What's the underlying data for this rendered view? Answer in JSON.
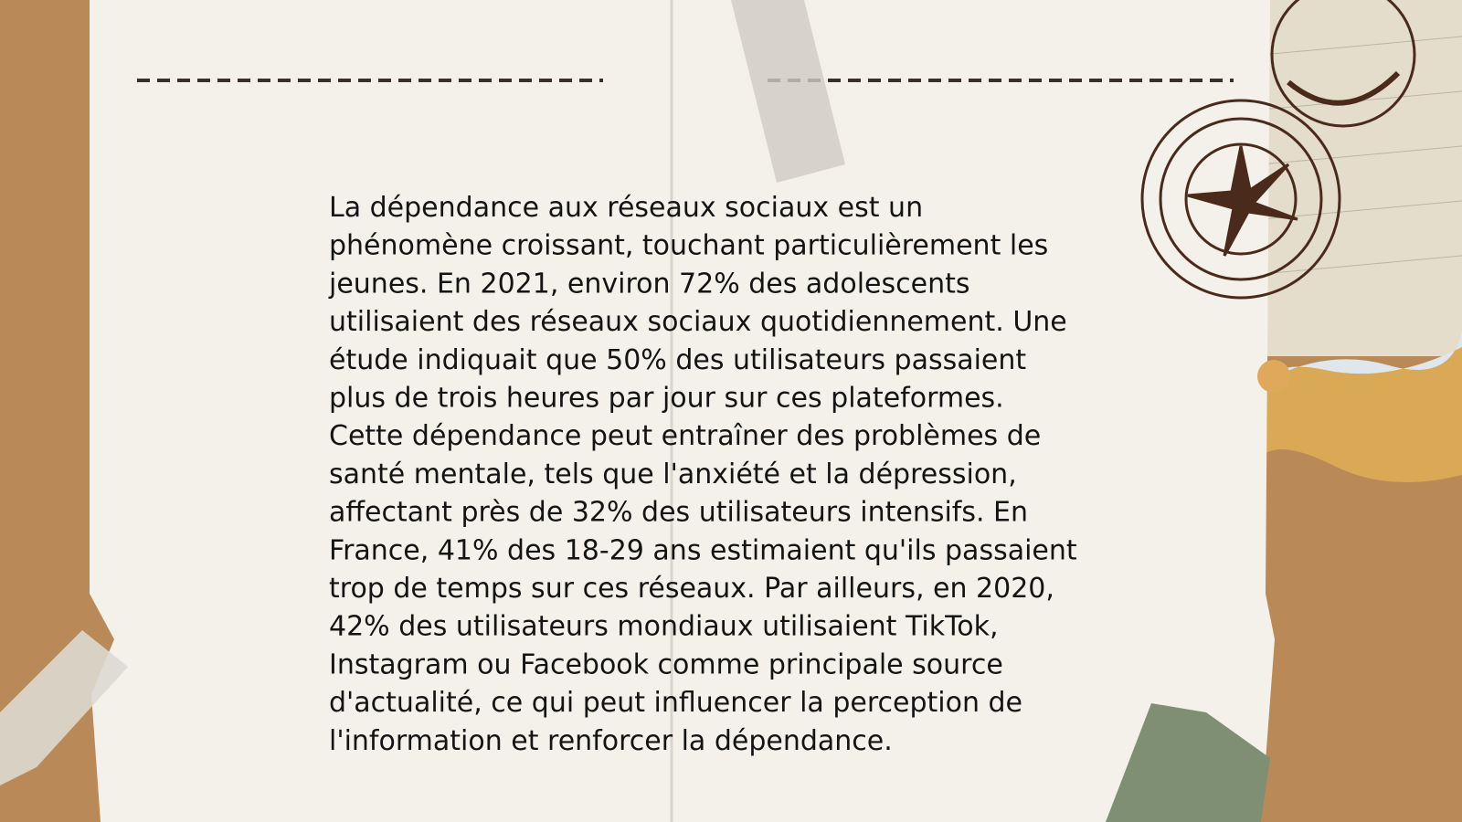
{
  "slide": {
    "body_lines": [
      "La dépendance aux réseaux sociaux est un",
      "phénomène croissant, touchant particulièrement les",
      "jeunes. En 2021, environ 72% des adolescents",
      "utilisaient des réseaux sociaux quotidiennement. Une",
      "étude indiquait que 50% des utilisateurs passaient",
      "plus de trois heures par jour sur ces plateformes.",
      "Cette dépendance peut entraîner des problèmes de",
      "santé mentale, tels que l'anxiété et la dépression,",
      "affectant près de 32% des utilisateurs intensifs. En",
      "France, 41% des 18-29 ans estimaient qu'ils passaient",
      "trop de temps sur ces réseaux. Par ailleurs, en 2020,",
      "42% des utilisateurs mondiaux utilisaient TikTok,",
      "Instagram ou Facebook comme principale source",
      "d'actualité, ce qui peut influencer la perception de",
      "l'information et renforcer la dépendance."
    ]
  }
}
